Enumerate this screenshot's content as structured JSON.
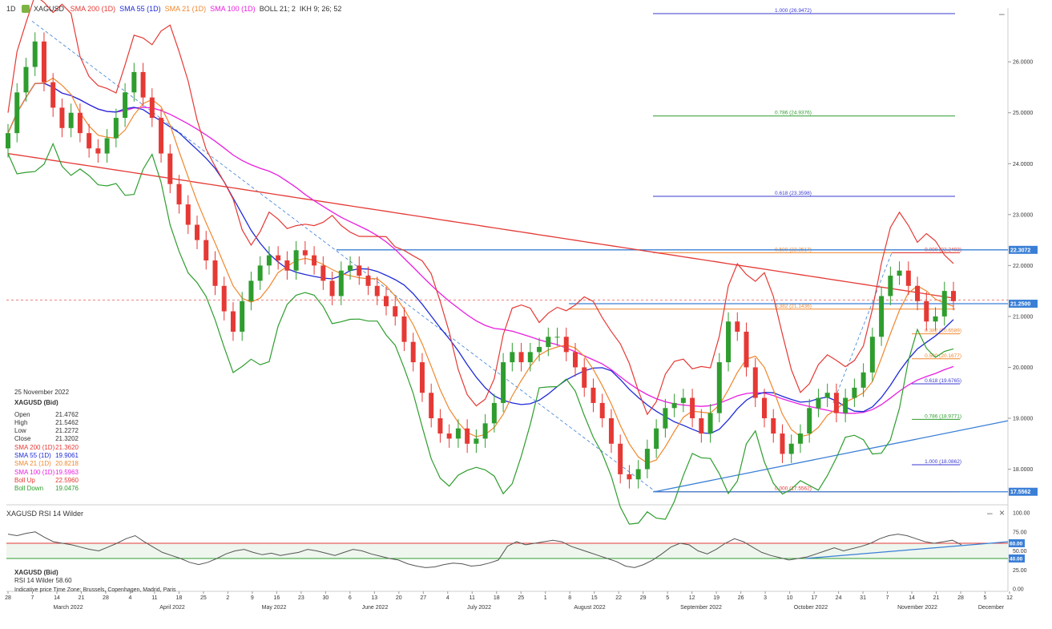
{
  "header": {
    "timeframe": "1D",
    "symbol": "XAGUSD",
    "indicators": [
      {
        "label": "SMA 200 (1D)",
        "color": "#e53935"
      },
      {
        "label": "SMA 55 (1D)",
        "color": "#1e2bd6"
      },
      {
        "label": "SMA 21 (1D)",
        "color": "#f0872e"
      },
      {
        "label": "SMA 100 (1D)",
        "color": "#e91ee0"
      },
      {
        "label": "BOLL 21; 2",
        "color": "#333333"
      },
      {
        "label": "IKH 9; 26; 52",
        "color": "#333333"
      }
    ]
  },
  "info_panel": {
    "date": "25 November 2022",
    "symbol": "XAGUSD (Bid)",
    "rows": [
      {
        "label": "Open",
        "value": "21.4762",
        "color": "#333333"
      },
      {
        "label": "High",
        "value": "21.5462",
        "color": "#333333"
      },
      {
        "label": "Low",
        "value": "21.2272",
        "color": "#333333"
      },
      {
        "label": "Close",
        "value": "21.3202",
        "color": "#333333"
      },
      {
        "label": "SMA 200 (1D)",
        "value": "21.3620",
        "color": "#e53935"
      },
      {
        "label": "SMA 55 (1D)",
        "value": "19.9061",
        "color": "#1e2bd6"
      },
      {
        "label": "SMA 21 (1D)",
        "value": "20.8218",
        "color": "#f0872e"
      },
      {
        "label": "SMA 100 (1D)",
        "value": "19.5963",
        "color": "#e91ee0"
      },
      {
        "label": "Boll Up",
        "value": "22.5960",
        "color": "#e53935"
      },
      {
        "label": "Boll Down",
        "value": "19.0476",
        "color": "#2e9d2e"
      }
    ]
  },
  "rsi_panel": {
    "title": "XAGUSD RSI 14 Wilder",
    "symbol": "XAGUSD (Bid)",
    "value_label": "RSI 14 Wilder 58.60",
    "footer": "Indicative price    Time Zone: Brussels, Copenhagen, Madrid, Paris"
  },
  "colors": {
    "up": "#2e9d2e",
    "down": "#e53935",
    "sma200": "#e53935",
    "sma55": "#1e2bd6",
    "sma21": "#f0872e",
    "sma100": "#e91ee0",
    "boll": "#2e9d2e",
    "fib_blue": "#3a3ad0",
    "fib_green": "#2e9d2e",
    "fib_orange": "#f0872e",
    "hline": "#3a7fd6"
  },
  "chart_data": [
    {
      "type": "candlestick",
      "title": "",
      "ylim": [
        17.3,
        26.9
      ],
      "y_ticks": [
        "26.0000",
        "25.0000",
        "24.0000",
        "23.0000",
        "22.0000",
        "21.0000",
        "20.0000",
        "19.0000",
        "18.0000"
      ],
      "y_tick_values": [
        26,
        25,
        24,
        23,
        22,
        21,
        20,
        19,
        18
      ],
      "price_tags": [
        {
          "label": "22.3072",
          "value": 22.3072,
          "color": "#3a7fd6"
        },
        {
          "label": "21.2500",
          "value": 21.25,
          "color": "#3a7fd6"
        },
        {
          "label": "17.5562",
          "value": 17.5562,
          "color": "#3a7fd6"
        }
      ],
      "x_ticks": [
        "28",
        "7",
        "14",
        "21",
        "28",
        "4",
        "11",
        "18",
        "25",
        "2",
        "9",
        "16",
        "23",
        "30",
        "6",
        "13",
        "20",
        "27",
        "4",
        "11",
        "18",
        "25",
        "1",
        "8",
        "15",
        "22",
        "29",
        "5",
        "12",
        "19",
        "26",
        "3",
        "10",
        "17",
        "24",
        "31",
        "7",
        "14",
        "21",
        "28",
        "5",
        "12"
      ],
      "x_months": [
        "March 2022",
        "April 2022",
        "May 2022",
        "June 2022",
        "July 2022",
        "August 2022",
        "September 2022",
        "October 2022",
        "November 2022",
        "December"
      ],
      "fibonacci_upper": [
        {
          "label": "1.000 (26.9472)",
          "value": 26.9472,
          "color": "#3a3ad0"
        },
        {
          "label": "0.786 (24.9376)",
          "value": 24.9376,
          "color": "#2e9d2e"
        },
        {
          "label": "0.618 (23.3598)",
          "value": 23.3598,
          "color": "#3a3ad0"
        },
        {
          "label": "0.500 (22.2517)",
          "value": 22.2517,
          "color": "#f0872e"
        },
        {
          "label": "0.382 (21.1436)",
          "value": 21.1436,
          "color": "#f0872e"
        }
      ],
      "fibonacci_lower": [
        {
          "label": "0.000 (22.2493)",
          "value": 22.2493,
          "color": "#e53935"
        },
        {
          "label": "0.382 (20.6589)",
          "value": 20.6589,
          "color": "#f0872e"
        },
        {
          "label": "0.500 (20.1677)",
          "value": 20.1677,
          "color": "#f0872e"
        },
        {
          "label": "0.618 (19.6765)",
          "value": 19.6765,
          "color": "#3a3ad0"
        },
        {
          "label": "0.786 (18.9771)",
          "value": 18.9771,
          "color": "#2e9d2e"
        },
        {
          "label": "1.000 (18.0862)",
          "value": 18.0862,
          "color": "#3a3ad0"
        },
        {
          "label": "0.000 (17.5562)",
          "value": 17.5562,
          "color": "#e53935"
        }
      ],
      "close_series": [
        24.6,
        25.4,
        25.9,
        26.4,
        25.6,
        25.1,
        24.7,
        25.0,
        24.6,
        24.3,
        24.2,
        24.5,
        24.9,
        25.4,
        25.8,
        25.3,
        24.9,
        24.2,
        23.6,
        23.2,
        22.8,
        22.5,
        22.1,
        21.6,
        21.1,
        20.7,
        21.3,
        21.7,
        22.0,
        22.2,
        22.1,
        21.9,
        22.3,
        22.2,
        22.0,
        21.7,
        21.4,
        21.9,
        22.0,
        21.8,
        21.6,
        21.4,
        21.2,
        21.0,
        20.5,
        20.1,
        19.5,
        19.0,
        18.7,
        18.6,
        18.8,
        18.5,
        18.6,
        18.9,
        19.3,
        20.1,
        20.3,
        20.1,
        20.3,
        20.4,
        20.6,
        20.6,
        20.3,
        20.0,
        19.6,
        19.3,
        19.0,
        18.5,
        17.9,
        17.8,
        18.0,
        18.4,
        18.8,
        19.2,
        19.3,
        19.4,
        19.0,
        18.7,
        19.1,
        20.1,
        20.9,
        20.7,
        20.0,
        19.4,
        19.0,
        18.7,
        18.3,
        18.5,
        18.7,
        19.2,
        19.4,
        19.5,
        19.1,
        19.4,
        19.6,
        19.9,
        20.6,
        21.4,
        21.8,
        21.9,
        21.6,
        21.3,
        20.9,
        21.0,
        21.5,
        21.3
      ]
    },
    {
      "type": "line",
      "title": "",
      "ylim": [
        0,
        100
      ],
      "y_ticks": [
        "100.00",
        "75.00",
        "50.00",
        "25.00",
        "0.00"
      ],
      "y_tick_values": [
        100,
        75,
        50,
        25,
        0
      ],
      "levels": [
        {
          "label": "60.00",
          "value": 60,
          "color": "#e53935"
        },
        {
          "label": "40.00",
          "value": 40,
          "color": "#2e9d2e"
        }
      ],
      "value_tag": {
        "label": "60.00",
        "value": 60
      },
      "rsi_series": [
        72,
        70,
        73,
        75,
        68,
        62,
        60,
        58,
        55,
        52,
        50,
        55,
        60,
        66,
        70,
        62,
        55,
        48,
        44,
        40,
        35,
        32,
        35,
        40,
        46,
        50,
        52,
        48,
        45,
        47,
        44,
        46,
        48,
        52,
        50,
        47,
        44,
        48,
        52,
        50,
        46,
        43,
        40,
        38,
        33,
        30,
        28,
        29,
        32,
        34,
        33,
        30,
        31,
        34,
        38,
        56,
        62,
        58,
        60,
        62,
        64,
        62,
        56,
        52,
        48,
        44,
        40,
        36,
        30,
        28,
        32,
        38,
        46,
        55,
        60,
        58,
        50,
        46,
        52,
        60,
        66,
        62,
        55,
        48,
        44,
        41,
        38,
        40,
        42,
        46,
        50,
        54,
        50,
        53,
        56,
        60,
        66,
        70,
        72,
        70,
        66,
        62,
        60,
        62,
        64,
        58
      ]
    }
  ]
}
